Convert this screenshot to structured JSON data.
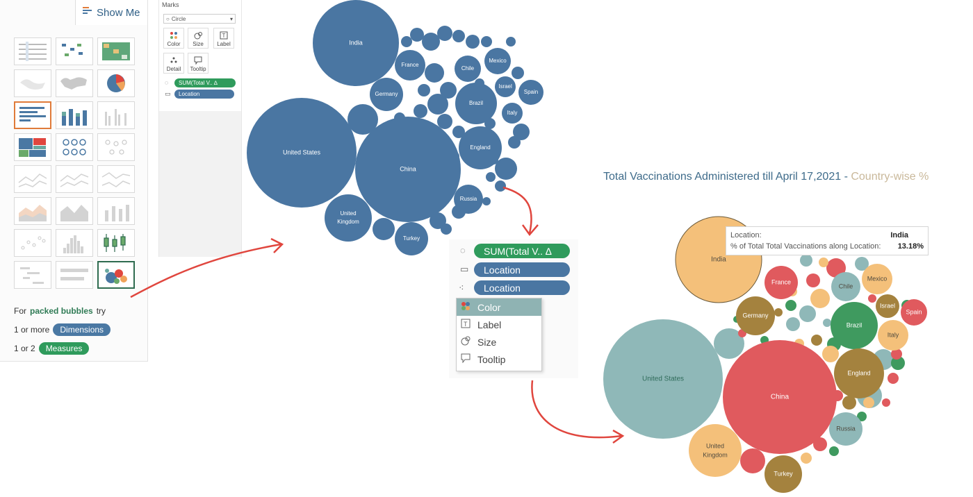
{
  "show_me": {
    "tab_label": "Show Me",
    "hint_prefix": "For",
    "hint_bold": "packed bubbles",
    "hint_suffix": "try",
    "dim_prefix": "1 or more",
    "dim_label": "Dimensions",
    "meas_prefix": "1 or 2",
    "meas_label": "Measures"
  },
  "marks_card": {
    "title": "Marks",
    "mark_type": "Circle",
    "buttons": [
      "Color",
      "Size",
      "Label",
      "Detail",
      "Tooltip"
    ],
    "pills": [
      "SUM(Total V.. ∆",
      "Location"
    ]
  },
  "zoom_panel": {
    "pills": [
      "SUM(Total V..  ∆",
      "Location",
      "Location"
    ],
    "menu": [
      "Color",
      "Label",
      "Size",
      "Tooltip"
    ]
  },
  "chart_title": {
    "part1": "Total Vaccinations Administered till April 17,2021 -",
    "part2": "Country-wise %"
  },
  "tooltip": {
    "loc_key": "Location:",
    "loc_val": "India",
    "pct_key": "% of Total Total Vaccinations along Location:",
    "pct_val": "13.18%"
  },
  "colors": {
    "blue_bubble": "#4a76a2",
    "green_pill": "#2f9b5c",
    "arrow": "#e0463e",
    "title_blue": "#3e6b8a",
    "title_tan": "#c9b89a"
  },
  "chart_data": [
    {
      "type": "packed-bubble",
      "title": "",
      "series": [
        {
          "name": "",
          "values": [
            {
              "label": "India",
              "size": 1.5
            },
            {
              "label": "United States",
              "size": 3.05
            },
            {
              "label": "China",
              "size": 2.85
            },
            {
              "label": "United Kingdom",
              "size": 0.4
            },
            {
              "label": "Turkey",
              "size": 0.13
            },
            {
              "label": "Russia",
              "size": 0.1
            },
            {
              "label": "England",
              "size": 0.35
            },
            {
              "label": "Brazil",
              "size": 0.25
            },
            {
              "label": "Germany",
              "size": 0.2
            },
            {
              "label": "France",
              "size": 0.13
            },
            {
              "label": "Chile",
              "size": 0.08
            },
            {
              "label": "Mexico",
              "size": 0.07
            },
            {
              "label": "Israel",
              "size": 0.05
            },
            {
              "label": "Spain",
              "size": 0.07
            },
            {
              "label": "Italy",
              "size": 0.09
            }
          ]
        }
      ]
    },
    {
      "type": "packed-bubble",
      "title": "Total Vaccinations Administered till April 17,2021 - Country-wise %",
      "series": [
        {
          "name": "",
          "values": [
            {
              "label": "India",
              "pct": 13.18
            },
            {
              "label": "United States",
              "size": 3.05
            },
            {
              "label": "China",
              "size": 2.85
            },
            {
              "label": "United Kingdom",
              "size": 0.38
            },
            {
              "label": "Germany",
              "size": 0.22
            },
            {
              "label": "France",
              "size": 0.14
            },
            {
              "label": "Chile",
              "size": 0.09
            },
            {
              "label": "Mexico",
              "size": 0.08
            },
            {
              "label": "Israel",
              "size": 0.05
            },
            {
              "label": "Spain",
              "size": 0.07
            },
            {
              "label": "Brazil",
              "size": 0.3
            },
            {
              "label": "Italy",
              "size": 0.09
            },
            {
              "label": "Russia",
              "size": 0.13
            },
            {
              "label": "England",
              "size": 0.4
            },
            {
              "label": "Turkey",
              "size": 0.15
            }
          ]
        }
      ]
    }
  ]
}
